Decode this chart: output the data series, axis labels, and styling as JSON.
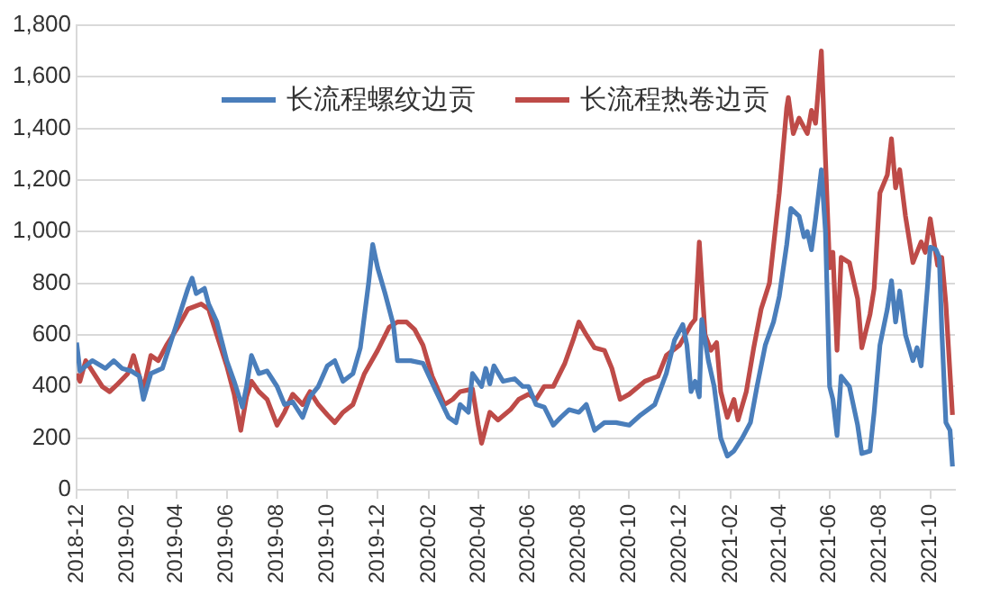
{
  "chart_data": {
    "type": "line",
    "series": [
      {
        "name": "长流程螺纹边贡",
        "color": "#4a7ebb",
        "x": [
          "2018-12-01",
          "2018-12-05",
          "2018-12-20",
          "2019-01-05",
          "2019-01-15",
          "2019-01-25",
          "2019-02-05",
          "2019-02-15",
          "2019-02-20",
          "2019-03-01",
          "2019-03-15",
          "2019-04-01",
          "2019-04-15",
          "2019-04-20",
          "2019-04-25",
          "2019-05-05",
          "2019-05-10",
          "2019-05-20",
          "2019-06-01",
          "2019-06-10",
          "2019-06-20",
          "2019-06-25",
          "2019-07-01",
          "2019-07-10",
          "2019-07-20",
          "2019-08-01",
          "2019-08-10",
          "2019-08-20",
          "2019-09-01",
          "2019-09-10",
          "2019-09-20",
          "2019-10-01",
          "2019-10-10",
          "2019-10-20",
          "2019-11-01",
          "2019-11-10",
          "2019-11-20",
          "2019-11-25",
          "2019-12-01",
          "2019-12-10",
          "2019-12-20",
          "2019-12-25",
          "2020-01-10",
          "2020-01-25",
          "2020-02-10",
          "2020-02-25",
          "2020-03-05",
          "2020-03-10",
          "2020-03-20",
          "2020-03-25",
          "2020-04-05",
          "2020-04-10",
          "2020-04-15",
          "2020-04-20",
          "2020-05-01",
          "2020-05-15",
          "2020-05-25",
          "2020-06-01",
          "2020-06-10",
          "2020-06-20",
          "2020-07-01",
          "2020-07-10",
          "2020-07-20",
          "2020-08-01",
          "2020-08-10",
          "2020-08-20",
          "2020-09-01",
          "2020-09-15",
          "2020-10-01",
          "2020-10-15",
          "2020-11-01",
          "2020-11-15",
          "2020-11-25",
          "2020-12-05",
          "2020-12-10",
          "2020-12-15",
          "2020-12-20",
          "2020-12-25",
          "2020-12-28",
          "2021-01-05",
          "2021-01-12",
          "2021-01-20",
          "2021-01-28",
          "2021-02-05",
          "2021-02-15",
          "2021-02-25",
          "2021-03-05",
          "2021-03-15",
          "2021-03-25",
          "2021-04-01",
          "2021-04-10",
          "2021-04-15",
          "2021-04-25",
          "2021-05-01",
          "2021-05-05",
          "2021-05-10",
          "2021-05-15",
          "2021-05-22",
          "2021-05-27",
          "2021-06-01",
          "2021-06-05",
          "2021-06-10",
          "2021-06-15",
          "2021-06-25",
          "2021-07-05",
          "2021-07-10",
          "2021-07-20",
          "2021-07-25",
          "2021-08-01",
          "2021-08-10",
          "2021-08-15",
          "2021-08-20",
          "2021-08-25",
          "2021-09-01",
          "2021-09-10",
          "2021-09-15",
          "2021-09-20",
          "2021-09-28",
          "2021-10-01",
          "2021-10-08",
          "2021-10-12",
          "2021-10-15",
          "2021-10-20",
          "2021-10-25",
          "2021-10-28"
        ],
        "values": [
          570,
          460,
          500,
          470,
          500,
          470,
          460,
          440,
          350,
          450,
          470,
          640,
          780,
          820,
          760,
          780,
          720,
          650,
          500,
          420,
          320,
          400,
          520,
          450,
          460,
          400,
          330,
          340,
          280,
          360,
          400,
          480,
          500,
          420,
          450,
          550,
          800,
          950,
          860,
          760,
          640,
          500,
          500,
          490,
          380,
          280,
          260,
          330,
          300,
          450,
          400,
          470,
          410,
          480,
          420,
          430,
          400,
          400,
          330,
          320,
          250,
          280,
          310,
          300,
          330,
          230,
          260,
          260,
          250,
          290,
          330,
          450,
          580,
          640,
          560,
          380,
          420,
          360,
          660,
          500,
          400,
          200,
          130,
          150,
          200,
          260,
          400,
          560,
          650,
          750,
          950,
          1090,
          1060,
          980,
          1000,
          930,
          1050,
          1240,
          1000,
          400,
          350,
          210,
          440,
          400,
          250,
          140,
          150,
          300,
          560,
          700,
          810,
          650,
          770,
          600,
          500,
          550,
          480,
          800,
          940,
          930,
          900,
          620,
          260,
          230,
          90
        ]
      },
      {
        "name": "长流程热卷边贡",
        "color": "#be4b48",
        "x": [
          "2018-12-01",
          "2018-12-05",
          "2018-12-12",
          "2018-12-20",
          "2019-01-01",
          "2019-01-10",
          "2019-01-20",
          "2019-02-01",
          "2019-02-08",
          "2019-02-15",
          "2019-02-20",
          "2019-03-01",
          "2019-03-10",
          "2019-03-20",
          "2019-04-01",
          "2019-04-15",
          "2019-05-01",
          "2019-05-10",
          "2019-05-20",
          "2019-06-01",
          "2019-06-10",
          "2019-06-18",
          "2019-06-25",
          "2019-07-01",
          "2019-07-10",
          "2019-07-20",
          "2019-08-01",
          "2019-08-10",
          "2019-08-20",
          "2019-09-01",
          "2019-09-10",
          "2019-09-20",
          "2019-10-01",
          "2019-10-10",
          "2019-10-20",
          "2019-11-01",
          "2019-11-15",
          "2019-12-01",
          "2019-12-15",
          "2019-12-25",
          "2020-01-05",
          "2020-01-15",
          "2020-01-25",
          "2020-02-05",
          "2020-02-20",
          "2020-03-01",
          "2020-03-10",
          "2020-03-25",
          "2020-04-01",
          "2020-04-05",
          "2020-04-15",
          "2020-04-25",
          "2020-05-10",
          "2020-05-20",
          "2020-06-01",
          "2020-06-10",
          "2020-06-20",
          "2020-07-01",
          "2020-07-15",
          "2020-07-25",
          "2020-08-01",
          "2020-08-10",
          "2020-08-20",
          "2020-09-01",
          "2020-09-10",
          "2020-09-20",
          "2020-10-01",
          "2020-10-20",
          "2020-11-05",
          "2020-11-15",
          "2020-12-01",
          "2020-12-15",
          "2020-12-20",
          "2020-12-25",
          "2021-01-01",
          "2021-01-08",
          "2021-01-15",
          "2021-01-20",
          "2021-01-28",
          "2021-02-05",
          "2021-02-10",
          "2021-02-20",
          "2021-03-01",
          "2021-03-10",
          "2021-03-20",
          "2021-04-01",
          "2021-04-10",
          "2021-04-12",
          "2021-04-18",
          "2021-04-25",
          "2021-05-05",
          "2021-05-10",
          "2021-05-15",
          "2021-05-22",
          "2021-05-27",
          "2021-06-01",
          "2021-06-05",
          "2021-06-10",
          "2021-06-15",
          "2021-06-25",
          "2021-07-05",
          "2021-07-10",
          "2021-07-20",
          "2021-07-25",
          "2021-08-01",
          "2021-08-10",
          "2021-08-15",
          "2021-08-20",
          "2021-08-25",
          "2021-09-01",
          "2021-09-10",
          "2021-09-20",
          "2021-09-25",
          "2021-10-01",
          "2021-10-10",
          "2021-10-15",
          "2021-10-20",
          "2021-10-25",
          "2021-10-28"
        ],
        "values": [
          450,
          420,
          500,
          460,
          400,
          380,
          410,
          450,
          520,
          440,
          390,
          520,
          500,
          560,
          620,
          700,
          720,
          700,
          600,
          480,
          370,
          230,
          360,
          420,
          380,
          350,
          250,
          300,
          370,
          330,
          380,
          330,
          290,
          260,
          300,
          330,
          450,
          540,
          630,
          650,
          650,
          620,
          560,
          440,
          330,
          350,
          380,
          390,
          250,
          180,
          300,
          270,
          310,
          350,
          370,
          350,
          400,
          400,
          490,
          580,
          650,
          600,
          550,
          540,
          470,
          350,
          370,
          420,
          440,
          520,
          560,
          640,
          660,
          960,
          600,
          540,
          570,
          380,
          280,
          350,
          270,
          380,
          550,
          700,
          800,
          1150,
          1480,
          1520,
          1380,
          1440,
          1380,
          1470,
          1420,
          1700,
          1280,
          860,
          920,
          540,
          900,
          880,
          740,
          550,
          680,
          780,
          1150,
          1220,
          1360,
          1170,
          1240,
          1060,
          880,
          960,
          920,
          1050,
          870,
          900,
          720,
          450,
          290
        ]
      }
    ],
    "xlim": [
      "2018-12-01",
      "2021-10-31"
    ],
    "xticks": [
      "2018-12",
      "2019-02",
      "2019-04",
      "2019-06",
      "2019-08",
      "2019-10",
      "2019-12",
      "2020-02",
      "2020-04",
      "2020-06",
      "2020-08",
      "2020-10",
      "2020-12",
      "2021-02",
      "2021-04",
      "2021-06",
      "2021-08",
      "2021-10"
    ],
    "ylim": [
      0,
      1800
    ],
    "yticks": [
      0,
      200,
      400,
      600,
      800,
      {
        "value": 1000,
        "label": "1,000"
      },
      {
        "value": 1200,
        "label": "1,200"
      },
      {
        "value": 1400,
        "label": "1,400"
      },
      {
        "value": 1600,
        "label": "1,600"
      },
      {
        "value": 1800,
        "label": "1,800"
      }
    ],
    "grid": "y",
    "legend": "top",
    "marker": "none",
    "line_style": "solid"
  }
}
